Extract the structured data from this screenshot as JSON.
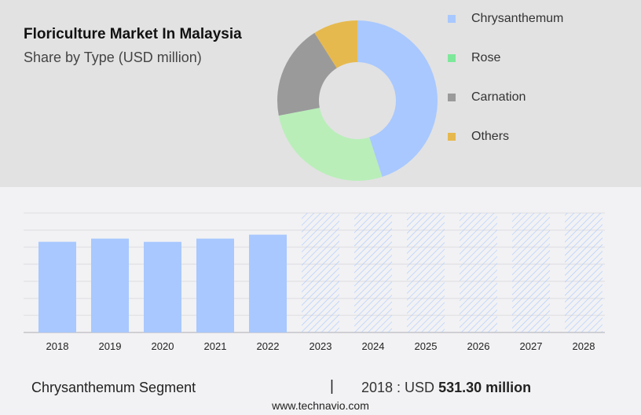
{
  "title": "Floriculture Market In Malaysia",
  "subtitle": "Share by Type (USD million)",
  "legend": [
    {
      "label": "Chrysanthemum",
      "color": "#a8c8ff"
    },
    {
      "label": "Rose",
      "color": "#7ee89a"
    },
    {
      "label": "Carnation",
      "color": "#9a9a9a"
    },
    {
      "label": "Others",
      "color": "#e6b94e"
    }
  ],
  "chart_data": [
    {
      "type": "pie",
      "donut": true,
      "categories": [
        "Chrysanthemum",
        "Rose",
        "Carnation",
        "Others"
      ],
      "values": [
        45,
        27,
        19,
        9
      ],
      "colors": [
        "#a8c8ff",
        "#b9eeb9",
        "#9a9a9a",
        "#e6b94e"
      ]
    },
    {
      "type": "bar",
      "categories": [
        "2018",
        "2019",
        "2020",
        "2021",
        "2022",
        "2023",
        "2024",
        "2025",
        "2026",
        "2027",
        "2028"
      ],
      "values": [
        531.3,
        550,
        531,
        550,
        573,
        null,
        null,
        null,
        null,
        null,
        null
      ],
      "forecast": [
        "2023",
        "2024",
        "2025",
        "2026",
        "2027",
        "2028"
      ],
      "bar_color": "#a8c8ff",
      "grid": true,
      "ylim": [
        0,
        700
      ]
    }
  ],
  "footer": {
    "segment": "Chrysanthemum Segment",
    "separator": "|",
    "year_prefix": "2018 : USD",
    "value": "531.30 million"
  },
  "site": "www.technavio.com"
}
